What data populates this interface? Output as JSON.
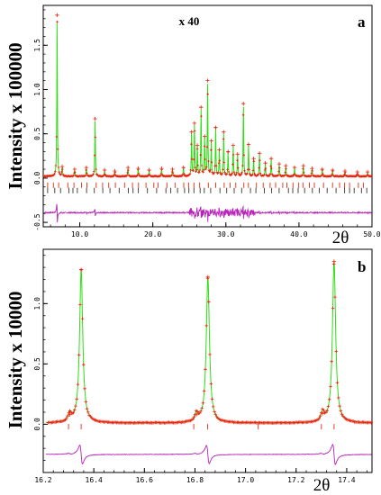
{
  "colors": {
    "observed": "#e8250f",
    "calculated": "#2ede12",
    "difference": "#b822b8",
    "reflections_1": "#e8250f",
    "reflections_2": "#333333",
    "axis": "#000000"
  },
  "chart_data": [
    {
      "id": "a",
      "type": "line",
      "panel_label": "a",
      "annotation": "x 40",
      "ylabel": "Intensity x 100000",
      "xlabel": "2θ",
      "xlim": [
        5,
        50
      ],
      "ylim": [
        -0.55,
        1.95
      ],
      "x_ticks": [
        "10.0",
        "20.0",
        "30.0",
        "40.0",
        "50.0"
      ],
      "x_tick_values": [
        10,
        20,
        30,
        40,
        50
      ],
      "y_ticks": [
        "-0.5",
        "0.0",
        "0.5",
        "1.0",
        "1.5"
      ],
      "y_tick_values": [
        -0.5,
        0,
        0.5,
        1.0,
        1.5
      ],
      "baseline": 0.02,
      "difference_offset": -0.39,
      "reflection_rows": [
        -0.08,
        -0.14
      ],
      "peaks": [
        {
          "x": 6.9,
          "y": 1.82
        },
        {
          "x": 7.6,
          "y": 0.11
        },
        {
          "x": 9.3,
          "y": 0.08
        },
        {
          "x": 10.9,
          "y": 0.1
        },
        {
          "x": 12.1,
          "y": 0.65
        },
        {
          "x": 13.4,
          "y": 0.07
        },
        {
          "x": 14.8,
          "y": 0.06
        },
        {
          "x": 16.6,
          "y": 0.1
        },
        {
          "x": 18.0,
          "y": 0.09
        },
        {
          "x": 19.5,
          "y": 0.07
        },
        {
          "x": 21.2,
          "y": 0.09
        },
        {
          "x": 22.7,
          "y": 0.08
        },
        {
          "x": 24.2,
          "y": 0.1
        },
        {
          "x": 25.3,
          "y": 0.5
        },
        {
          "x": 25.7,
          "y": 0.6
        },
        {
          "x": 26.1,
          "y": 0.35
        },
        {
          "x": 26.6,
          "y": 0.78
        },
        {
          "x": 27.1,
          "y": 0.45
        },
        {
          "x": 27.5,
          "y": 1.08
        },
        {
          "x": 28.0,
          "y": 0.4
        },
        {
          "x": 28.6,
          "y": 0.55
        },
        {
          "x": 29.1,
          "y": 0.3
        },
        {
          "x": 29.7,
          "y": 0.5
        },
        {
          "x": 30.3,
          "y": 0.28
        },
        {
          "x": 31.0,
          "y": 0.35
        },
        {
          "x": 31.6,
          "y": 0.25
        },
        {
          "x": 32.4,
          "y": 0.82
        },
        {
          "x": 33.1,
          "y": 0.36
        },
        {
          "x": 33.8,
          "y": 0.2
        },
        {
          "x": 34.6,
          "y": 0.26
        },
        {
          "x": 35.4,
          "y": 0.15
        },
        {
          "x": 36.2,
          "y": 0.2
        },
        {
          "x": 37.3,
          "y": 0.14
        },
        {
          "x": 38.2,
          "y": 0.12
        },
        {
          "x": 39.4,
          "y": 0.1
        },
        {
          "x": 40.6,
          "y": 0.12
        },
        {
          "x": 41.8,
          "y": 0.09
        },
        {
          "x": 43.2,
          "y": 0.08
        },
        {
          "x": 44.6,
          "y": 0.07
        },
        {
          "x": 46.3,
          "y": 0.06
        },
        {
          "x": 48.0,
          "y": 0.05
        },
        {
          "x": 49.4,
          "y": 0.05
        }
      ]
    },
    {
      "id": "b",
      "type": "line",
      "panel_label": "b",
      "ylabel": "Intensity x 10000",
      "xlabel": "2θ",
      "xlim": [
        16.2,
        17.5
      ],
      "ylim": [
        -0.4,
        1.45
      ],
      "x_ticks": [
        "16.2",
        "16.4",
        "16.6",
        "16.8",
        "17.0",
        "17.2",
        "17.4"
      ],
      "x_tick_values": [
        16.2,
        16.4,
        16.6,
        16.8,
        17.0,
        17.2,
        17.4
      ],
      "y_ticks": [
        "0.0",
        "0.5",
        "1.0"
      ],
      "y_tick_values": [
        0,
        0.5,
        1.0
      ],
      "baseline": 0.01,
      "difference_offset": -0.25,
      "reflection_rows": [
        -0.02
      ],
      "reflections": [
        16.3,
        16.35,
        16.795,
        16.85,
        17.05,
        17.3,
        17.35
      ],
      "peaks": [
        {
          "x": 16.35,
          "y": 1.27
        },
        {
          "x": 16.305,
          "y": 0.07
        },
        {
          "x": 16.851,
          "y": 1.21
        },
        {
          "x": 16.806,
          "y": 0.07
        },
        {
          "x": 17.35,
          "y": 1.34
        },
        {
          "x": 17.305,
          "y": 0.08
        }
      ]
    }
  ]
}
